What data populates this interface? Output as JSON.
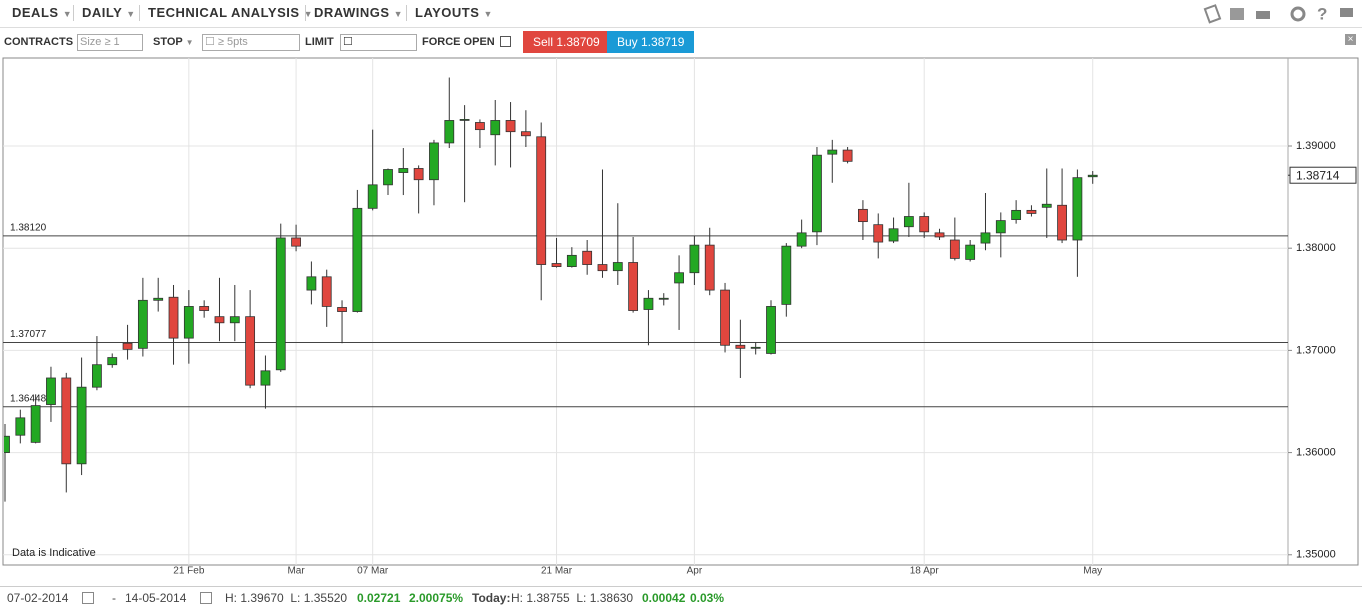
{
  "toolbar": {
    "menus": [
      "DEALS",
      "DAILY",
      "TECHNICAL ANALYSIS",
      "DRAWINGS",
      "LAYOUTS"
    ]
  },
  "order_bar": {
    "contracts": "CONTRACTS",
    "size_placeholder": "Size ≥ 1",
    "stop": "STOP",
    "stop_placeholder": "≥ 5pts",
    "limit": "LIMIT",
    "force_open": "FORCE OPEN",
    "sell": "Sell 1.38709",
    "buy": "Buy 1.38719"
  },
  "footer": {
    "from": "07-02-2014",
    "dash": "-",
    "to": "14-05-2014",
    "range": "H: 1.39670  L: 1.35520",
    "change": "0.02721",
    "change_pct": "2.00075%",
    "today": "Today:",
    "today_range": "H: 1.38755  L: 1.38630",
    "today_change": "0.00042",
    "today_pct": "0.03%"
  },
  "chart_data": {
    "type": "candlestick",
    "note": "Data is Indicative",
    "categories": [
      null,
      null,
      null,
      null,
      null,
      null,
      null,
      null,
      null,
      null,
      null,
      null,
      "21 Feb",
      null,
      null,
      null,
      null,
      null,
      null,
      "Mar",
      null,
      null,
      null,
      null,
      "07 Mar",
      null,
      null,
      null,
      null,
      null,
      null,
      null,
      null,
      null,
      null,
      null,
      "21 Mar",
      null,
      null,
      null,
      null,
      null,
      null,
      null,
      null,
      "Apr",
      null,
      null,
      null,
      null,
      null,
      null,
      null,
      null,
      null,
      null,
      null,
      null,
      null,
      null,
      "18 Apr",
      null,
      null,
      null,
      null,
      null,
      null,
      null,
      null,
      null,
      null,
      "May"
    ],
    "open": [
      1.36,
      1.3617,
      1.361,
      1.3647,
      1.3673,
      1.3589,
      1.3664,
      1.3686,
      1.3707,
      1.3702,
      1.3749,
      1.3752,
      1.3712,
      1.3743,
      1.3733,
      1.3727,
      1.3733,
      1.3666,
      1.3681,
      1.381,
      1.3759,
      1.3772,
      1.3742,
      1.3738,
      1.3839,
      1.3862,
      1.3874,
      1.3878,
      1.3867,
      1.3903,
      1.3925,
      1.3923,
      1.3911,
      1.3925,
      1.3914,
      1.3909,
      1.3785,
      1.3782,
      1.3797,
      1.3784,
      1.3778,
      1.3786,
      1.374,
      1.375,
      1.3766,
      1.3776,
      1.3803,
      1.3759,
      1.3705,
      1.3702,
      1.3697,
      1.3745,
      1.3802,
      1.3816,
      1.3892,
      1.3896,
      1.3838,
      1.3823,
      1.3807,
      1.3821,
      1.3831,
      1.3815,
      1.3808,
      1.3789,
      1.3805,
      1.3815,
      1.3828,
      1.3837,
      1.384,
      1.3842,
      1.3808,
      1.38699
    ],
    "high": [
      1.3628,
      1.3642,
      1.3657,
      1.3684,
      1.3678,
      1.3693,
      1.3714,
      1.3697,
      1.3725,
      1.3771,
      1.3771,
      1.3764,
      1.3759,
      1.3749,
      1.3771,
      1.3764,
      1.3759,
      1.3695,
      1.3824,
      1.3823,
      1.3787,
      1.3779,
      1.3749,
      1.3857,
      1.3916,
      1.3878,
      1.3898,
      1.3881,
      1.3906,
      1.3967,
      1.394,
      1.3926,
      1.3945,
      1.3943,
      1.3935,
      1.3923,
      1.381,
      1.3801,
      1.3808,
      1.3877,
      1.3844,
      1.3811,
      1.3759,
      1.3756,
      1.3793,
      1.3812,
      1.382,
      1.3766,
      1.373,
      1.3708,
      1.3749,
      1.3805,
      1.3828,
      1.3899,
      1.3906,
      1.3899,
      1.3847,
      1.3834,
      1.383,
      1.3864,
      1.3835,
      1.3819,
      1.383,
      1.3808,
      1.3854,
      1.3835,
      1.3847,
      1.3842,
      1.3878,
      1.3878,
      1.3877,
      1.38755
    ],
    "low": [
      1.3552,
      1.3609,
      1.3609,
      1.363,
      1.3561,
      1.3578,
      1.3661,
      1.3683,
      1.3691,
      1.3694,
      1.3738,
      1.3686,
      1.3687,
      1.3732,
      1.3709,
      1.3709,
      1.3663,
      1.3643,
      1.3679,
      1.3797,
      1.3745,
      1.3723,
      1.3707,
      1.3737,
      1.3837,
      1.3852,
      1.3852,
      1.3834,
      1.3842,
      1.3898,
      1.3845,
      1.3898,
      1.3881,
      1.3879,
      1.3899,
      1.3749,
      1.3781,
      1.3781,
      1.3774,
      1.3771,
      1.3764,
      1.3737,
      1.3705,
      1.3744,
      1.372,
      1.3764,
      1.3754,
      1.3698,
      1.3673,
      1.3696,
      1.3696,
      1.3733,
      1.38,
      1.3803,
      1.3864,
      1.3883,
      1.3808,
      1.379,
      1.3805,
      1.3811,
      1.381,
      1.3808,
      1.3788,
      1.3787,
      1.3798,
      1.3791,
      1.3824,
      1.3831,
      1.381,
      1.3805,
      1.3772,
      1.3863
    ],
    "close": [
      1.3616,
      1.3634,
      1.3646,
      1.3673,
      1.3589,
      1.3664,
      1.3686,
      1.3693,
      1.3701,
      1.3749,
      1.3751,
      1.3712,
      1.3743,
      1.3739,
      1.3727,
      1.3733,
      1.3666,
      1.368,
      1.381,
      1.3802,
      1.3772,
      1.3743,
      1.3738,
      1.3839,
      1.3862,
      1.3877,
      1.3878,
      1.3867,
      1.3903,
      1.3925,
      1.3926,
      1.3916,
      1.3925,
      1.3914,
      1.391,
      1.3784,
      1.3782,
      1.3793,
      1.3784,
      1.3778,
      1.3786,
      1.3739,
      1.3751,
      1.3751,
      1.3776,
      1.3803,
      1.3759,
      1.3705,
      1.3702,
      1.3703,
      1.3743,
      1.3802,
      1.3815,
      1.3891,
      1.3896,
      1.3885,
      1.3826,
      1.3806,
      1.3819,
      1.3831,
      1.3816,
      1.3811,
      1.379,
      1.3803,
      1.3815,
      1.3827,
      1.3837,
      1.3834,
      1.3843,
      1.3808,
      1.3869,
      1.38714
    ],
    "up_color": "#23a823",
    "down_color": "#e0463e",
    "ylim": [
      1.349,
      1.39861
    ],
    "yticks": [
      {
        "value": 1.35,
        "label": "1.35000"
      },
      {
        "value": 1.36,
        "label": "1.36000"
      },
      {
        "value": 1.37,
        "label": "1.37000"
      },
      {
        "value": 1.38,
        "label": "1.38000"
      },
      {
        "value": 1.39,
        "label": "1.39000"
      }
    ],
    "levels": [
      {
        "value": 1.3812,
        "label": "1.38120"
      },
      {
        "value": 1.37077,
        "label": "1.37077"
      },
      {
        "value": 1.36448,
        "label": "1.36448"
      }
    ],
    "last_price": 1.38714,
    "grid": true
  }
}
